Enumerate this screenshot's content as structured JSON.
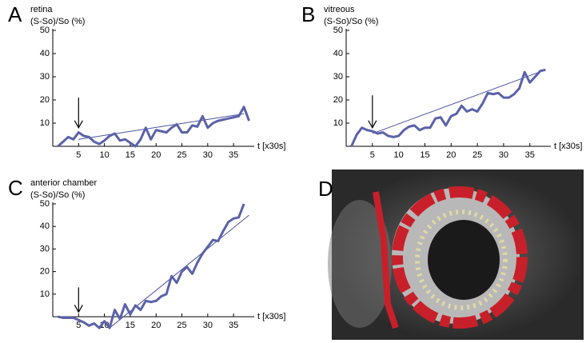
{
  "chart_data": [
    {
      "type": "line",
      "label": "A",
      "title": "retina",
      "y_label": "(S-So)/So (%)",
      "x_label": "t [x30s]",
      "xlim": [
        0,
        39
      ],
      "ylim": [
        0,
        50
      ],
      "xticks": [
        5,
        10,
        15,
        20,
        25,
        30,
        35
      ],
      "yticks": [
        10,
        20,
        30,
        40,
        50
      ],
      "x": [
        1,
        2,
        3,
        4,
        5,
        6,
        7,
        8,
        9,
        10,
        11,
        12,
        13,
        14,
        15,
        16,
        17,
        18,
        19,
        20,
        21,
        22,
        23,
        24,
        25,
        26,
        27,
        28,
        29,
        30,
        31,
        32,
        33,
        34,
        35,
        36,
        37,
        38
      ],
      "series": [
        {
          "color": "#5a62a8",
          "values": [
            0,
            2,
            4,
            3,
            6,
            4.5,
            4,
            2,
            1,
            2.5,
            4.5,
            5.5,
            2.5,
            3,
            1.5,
            0,
            3,
            8,
            3,
            7,
            6.5,
            6,
            8,
            9.5,
            6,
            6,
            9,
            8.5,
            13,
            8,
            10,
            11,
            11.5,
            12,
            12.5,
            13,
            17,
            11
          ]
        }
      ],
      "fit": {
        "color": "#4a52a0",
        "x": [
          5,
          37
        ],
        "values": [
          3,
          14
        ]
      },
      "arrow": {
        "x": 5,
        "y_from": 21,
        "y_to": 8
      }
    },
    {
      "type": "line",
      "label": "B",
      "title": "vitreous",
      "y_label": "(S-So)/So (%)",
      "x_label": "t [x30s]",
      "xlim": [
        0,
        39
      ],
      "ylim": [
        0,
        50
      ],
      "xticks": [
        5,
        10,
        15,
        20,
        25,
        30,
        35
      ],
      "yticks": [
        10,
        20,
        30,
        40,
        50
      ],
      "x": [
        1,
        2,
        3,
        4,
        5,
        6,
        7,
        8,
        9,
        10,
        11,
        12,
        13,
        14,
        15,
        16,
        17,
        18,
        19,
        20,
        21,
        22,
        23,
        24,
        25,
        26,
        27,
        28,
        29,
        30,
        31,
        32,
        33,
        34,
        35,
        36,
        37,
        38
      ],
      "series": [
        {
          "color": "#5a62a8",
          "values": [
            0,
            5,
            8,
            7,
            6.5,
            5.5,
            6,
            4.5,
            4,
            4.5,
            7,
            8.5,
            9,
            7,
            8,
            8,
            12,
            12.5,
            9,
            13,
            14,
            17.5,
            15,
            16,
            15,
            18.5,
            23,
            22.5,
            23,
            21,
            21,
            22.5,
            25,
            32,
            27.5,
            30,
            32.5,
            33
          ]
        }
      ],
      "fit": {
        "color": "#4a52a0",
        "x": [
          5,
          38
        ],
        "values": [
          5.5,
          33
        ]
      },
      "arrow": {
        "x": 5,
        "y_from": 22,
        "y_to": 8
      }
    },
    {
      "type": "line",
      "label": "C",
      "title": "anterior chamber",
      "y_label": "(S-So)/So (%)",
      "x_label": "t [x30s]",
      "xlim": [
        0,
        39
      ],
      "ylim": [
        -6,
        50
      ],
      "xticks": [
        5,
        10,
        15,
        20,
        25,
        30,
        35
      ],
      "yticks": [
        10,
        20,
        30,
        40,
        50
      ],
      "x": [
        1,
        2,
        3,
        4,
        5,
        6,
        7,
        8,
        9,
        10,
        11,
        12,
        13,
        14,
        15,
        16,
        17,
        18,
        19,
        20,
        21,
        22,
        23,
        24,
        25,
        26,
        27,
        28,
        29,
        30,
        31,
        32,
        33,
        34,
        35,
        36,
        37
      ],
      "series": [
        {
          "color": "#5a62a8",
          "values": [
            0,
            -0.5,
            -0.5,
            -0.5,
            -1.5,
            -2.5,
            -4,
            -3,
            -5,
            -2,
            -5,
            3,
            -1,
            5.5,
            1,
            5,
            3,
            7,
            6.5,
            7,
            9,
            10,
            18,
            15,
            20,
            22,
            19,
            24,
            28,
            31,
            34,
            33.5,
            38,
            42,
            43.5,
            44,
            50
          ]
        }
      ],
      "fit": {
        "color": "#4a52a0",
        "x": [
          11,
          38
        ],
        "values": [
          -5,
          45
        ]
      },
      "arrow": {
        "x": 5,
        "y_from": 13,
        "y_to": 2
      }
    }
  ],
  "image_panel": {
    "label": "D"
  }
}
